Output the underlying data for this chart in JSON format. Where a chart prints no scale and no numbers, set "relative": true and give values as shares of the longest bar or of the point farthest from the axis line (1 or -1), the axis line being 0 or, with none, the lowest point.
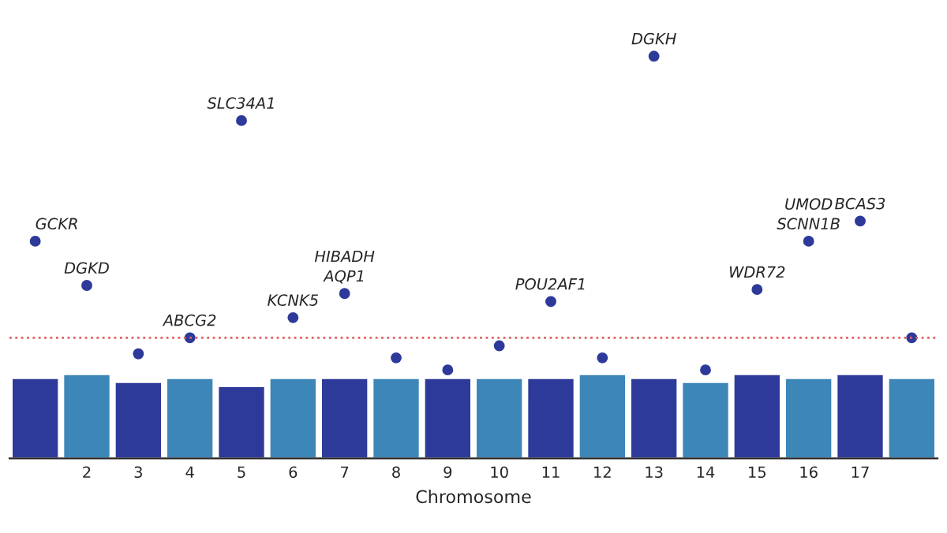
{
  "chart_data": {
    "type": "bar",
    "relative": true,
    "xlabel": "Chromosome",
    "categories": [
      null,
      "2",
      "3",
      "4",
      "5",
      "6",
      "7",
      "8",
      "9",
      "10",
      "11",
      "12",
      "13",
      "14",
      "15",
      "16",
      "17",
      null
    ],
    "series": [
      {
        "colors": [
          "#2e3a9a",
          "#3d86b8",
          "#2e3a9a",
          "#3d86b8",
          "#2e3a9a",
          "#3d86b8",
          "#2e3a9a",
          "#3d86b8",
          "#2e3a9a",
          "#3d86b8",
          "#2e3a9a",
          "#3d86b8",
          "#2e3a9a",
          "#3d86b8",
          "#2e3a9a",
          "#3d86b8",
          "#2e3a9a",
          "#3d86b8"
        ],
        "values": [
          0.2,
          0.21,
          0.19,
          0.2,
          0.18,
          0.2,
          0.2,
          0.2,
          0.2,
          0.2,
          0.2,
          0.21,
          0.2,
          0.19,
          0.21,
          0.2,
          0.21,
          0.2
        ]
      },
      {
        "type": "scatter",
        "color": "#2e3a9a",
        "values": [
          0.54,
          0.43,
          0.26,
          0.3,
          0.84,
          0.35,
          0.41,
          0.25,
          0.22,
          0.28,
          0.39,
          0.25,
          1.0,
          0.22,
          0.42,
          0.54,
          0.59,
          0.3
        ]
      }
    ],
    "ref_lines": [
      {
        "axis": "y",
        "value": 0.3,
        "color": "#e06060",
        "line_style": "dotted"
      }
    ],
    "annotations": [
      "GCKR",
      {
        "text": "DGKD",
        "x": "2",
        "y": 0.43
      },
      {
        "text": "ABCG2",
        "x": "4",
        "y": 0.3
      },
      {
        "text": "SLC34A1",
        "x": "5",
        "y": 0.84
      },
      {
        "text": "KCNK5",
        "x": "6",
        "y": 0.35
      },
      {
        "text": "AQP1",
        "x": "7",
        "y": 0.41
      },
      {
        "text": "HIBADH",
        "x": "7",
        "y": 0.41
      },
      {
        "text": "POU2AF1",
        "x": "11",
        "y": 0.39
      },
      {
        "text": "DGKH",
        "x": "13",
        "y": 1.0
      },
      {
        "text": "WDR72",
        "x": "15",
        "y": 0.42
      },
      {
        "text": "SCNN1B",
        "x": "16",
        "y": 0.54
      },
      {
        "text": "UMOD",
        "x": "16",
        "y": 0.54
      },
      {
        "text": "BCAS3",
        "x": "17",
        "y": 0.59
      }
    ],
    "grid": false,
    "legend": false,
    "marker": "circle"
  }
}
